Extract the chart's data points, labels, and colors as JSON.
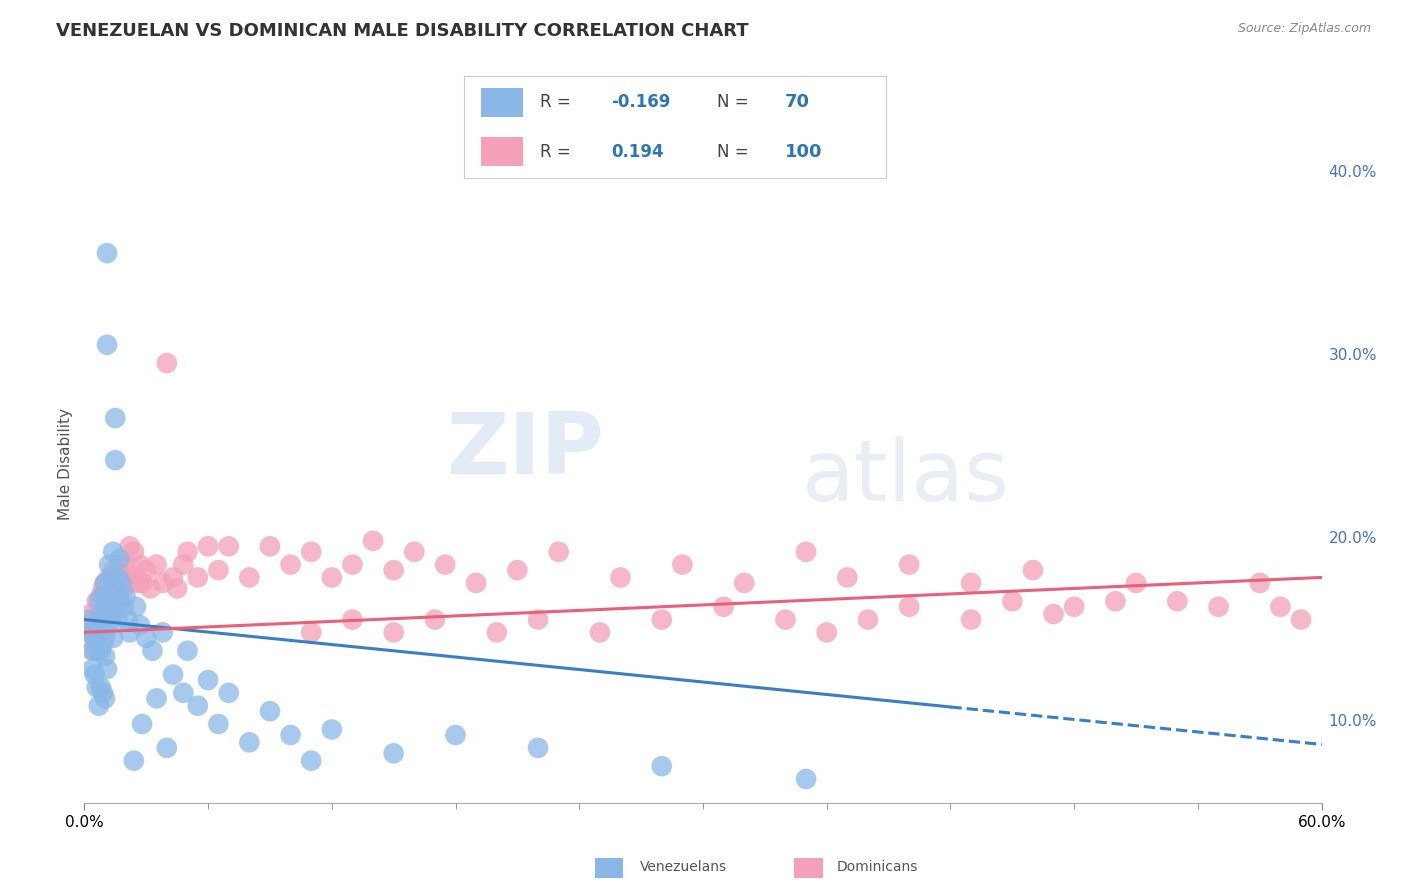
{
  "title": "VENEZUELAN VS DOMINICAN MALE DISABILITY CORRELATION CHART",
  "source": "Source: ZipAtlas.com",
  "ylabel": "Male Disability",
  "right_ytick_vals": [
    0.1,
    0.2,
    0.3,
    0.4
  ],
  "xlim": [
    0.0,
    0.6
  ],
  "ylim": [
    0.055,
    0.425
  ],
  "venezuelan_color": "#89B8E8",
  "dominican_color": "#F4A0B8",
  "trend_venezuelan_color": "#3A7EC6",
  "trend_dominican_color": "#E8607A",
  "watermark_zip": "ZIP",
  "watermark_atlas": "atlas",
  "legend_R_venezuelan": "-0.169",
  "legend_N_venezuelan": "70",
  "legend_R_dominican": "0.194",
  "legend_N_dominican": "100",
  "venezuelan_x": [
    0.002,
    0.003,
    0.004,
    0.004,
    0.005,
    0.005,
    0.006,
    0.006,
    0.007,
    0.007,
    0.007,
    0.008,
    0.008,
    0.008,
    0.009,
    0.009,
    0.009,
    0.009,
    0.01,
    0.01,
    0.01,
    0.01,
    0.01,
    0.011,
    0.011,
    0.011,
    0.012,
    0.012,
    0.013,
    0.013,
    0.014,
    0.014,
    0.014,
    0.015,
    0.015,
    0.016,
    0.016,
    0.017,
    0.017,
    0.018,
    0.019,
    0.02,
    0.021,
    0.022,
    0.024,
    0.025,
    0.027,
    0.028,
    0.03,
    0.033,
    0.035,
    0.038,
    0.04,
    0.043,
    0.048,
    0.05,
    0.055,
    0.06,
    0.065,
    0.07,
    0.08,
    0.09,
    0.1,
    0.11,
    0.12,
    0.15,
    0.18,
    0.22,
    0.28,
    0.35
  ],
  "venezuelan_y": [
    0.155,
    0.148,
    0.138,
    0.128,
    0.145,
    0.125,
    0.138,
    0.118,
    0.165,
    0.148,
    0.108,
    0.155,
    0.138,
    0.118,
    0.168,
    0.155,
    0.142,
    0.115,
    0.175,
    0.162,
    0.148,
    0.135,
    0.112,
    0.355,
    0.305,
    0.128,
    0.185,
    0.165,
    0.178,
    0.155,
    0.192,
    0.172,
    0.145,
    0.265,
    0.242,
    0.178,
    0.155,
    0.188,
    0.165,
    0.175,
    0.162,
    0.168,
    0.155,
    0.148,
    0.078,
    0.162,
    0.152,
    0.098,
    0.145,
    0.138,
    0.112,
    0.148,
    0.085,
    0.125,
    0.115,
    0.138,
    0.108,
    0.122,
    0.098,
    0.115,
    0.088,
    0.105,
    0.092,
    0.078,
    0.095,
    0.082,
    0.092,
    0.085,
    0.075,
    0.068
  ],
  "dominican_x": [
    0.002,
    0.003,
    0.004,
    0.004,
    0.005,
    0.005,
    0.006,
    0.006,
    0.007,
    0.007,
    0.008,
    0.008,
    0.009,
    0.009,
    0.01,
    0.01,
    0.01,
    0.011,
    0.011,
    0.012,
    0.012,
    0.013,
    0.013,
    0.014,
    0.014,
    0.015,
    0.015,
    0.016,
    0.016,
    0.017,
    0.017,
    0.018,
    0.019,
    0.02,
    0.021,
    0.022,
    0.023,
    0.024,
    0.025,
    0.026,
    0.027,
    0.028,
    0.03,
    0.032,
    0.035,
    0.038,
    0.04,
    0.043,
    0.045,
    0.048,
    0.05,
    0.055,
    0.06,
    0.065,
    0.07,
    0.08,
    0.09,
    0.1,
    0.11,
    0.12,
    0.13,
    0.14,
    0.15,
    0.16,
    0.175,
    0.19,
    0.21,
    0.23,
    0.26,
    0.29,
    0.32,
    0.35,
    0.37,
    0.4,
    0.43,
    0.46,
    0.48,
    0.51,
    0.53,
    0.55,
    0.57,
    0.58,
    0.59,
    0.5,
    0.47,
    0.45,
    0.43,
    0.4,
    0.38,
    0.36,
    0.34,
    0.31,
    0.28,
    0.25,
    0.22,
    0.2,
    0.17,
    0.15,
    0.13,
    0.11
  ],
  "dominican_y": [
    0.148,
    0.158,
    0.148,
    0.138,
    0.155,
    0.142,
    0.165,
    0.148,
    0.158,
    0.138,
    0.168,
    0.148,
    0.172,
    0.155,
    0.175,
    0.162,
    0.145,
    0.175,
    0.158,
    0.178,
    0.162,
    0.175,
    0.158,
    0.182,
    0.165,
    0.178,
    0.162,
    0.182,
    0.165,
    0.185,
    0.168,
    0.178,
    0.172,
    0.185,
    0.175,
    0.195,
    0.178,
    0.192,
    0.178,
    0.175,
    0.185,
    0.175,
    0.182,
    0.172,
    0.185,
    0.175,
    0.295,
    0.178,
    0.172,
    0.185,
    0.192,
    0.178,
    0.195,
    0.182,
    0.195,
    0.178,
    0.195,
    0.185,
    0.192,
    0.178,
    0.185,
    0.198,
    0.182,
    0.192,
    0.185,
    0.175,
    0.182,
    0.192,
    0.178,
    0.185,
    0.175,
    0.192,
    0.178,
    0.185,
    0.175,
    0.182,
    0.162,
    0.175,
    0.165,
    0.162,
    0.175,
    0.162,
    0.155,
    0.165,
    0.158,
    0.165,
    0.155,
    0.162,
    0.155,
    0.148,
    0.155,
    0.162,
    0.155,
    0.148,
    0.155,
    0.148,
    0.155,
    0.148,
    0.155,
    0.148
  ]
}
